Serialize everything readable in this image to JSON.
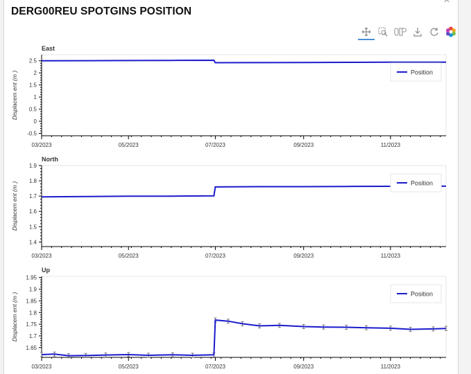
{
  "header": {
    "title": "DERG00REU SPOTGINS POSITION"
  },
  "toolbar": {
    "tools": [
      {
        "icon": "pan-icon"
      },
      {
        "icon": "box-zoom-icon"
      },
      {
        "icon": "zoom-icon"
      },
      {
        "icon": "save-icon"
      },
      {
        "icon": "reset-icon"
      },
      {
        "icon": "bokeh-logo-icon"
      }
    ]
  },
  "colors": {
    "series": "#1a1acd",
    "errorbar": "#777777"
  },
  "chart_data": [
    {
      "type": "line",
      "title": "East",
      "ylabel": "Displacem ent (m )",
      "ylim": [
        -0.6,
        2.75
      ],
      "yticks": [
        "2.5",
        "2",
        "1.5",
        "1",
        "0.5",
        "0",
        "-0.5"
      ],
      "ytick_values": [
        2.5,
        2,
        1.5,
        1,
        0.5,
        0,
        -0.5
      ],
      "xlim": [
        "2023-03-01",
        "2023-12-10"
      ],
      "xticks": [
        "03/2023",
        "05/2023",
        "07/2023",
        "09/2023",
        "11/2023"
      ],
      "xtick_values": [
        "2023-03-01",
        "2023-05-01",
        "2023-07-01",
        "2023-09-01",
        "2023-11-01"
      ],
      "legend": "top-right",
      "series": [
        {
          "name": "Position",
          "x": [
            "2023-03-01",
            "2023-04-01",
            "2023-05-01",
            "2023-06-01",
            "2023-06-30",
            "2023-07-01",
            "2023-08-01",
            "2023-09-01",
            "2023-10-01",
            "2023-11-01",
            "2023-12-10"
          ],
          "y": [
            2.5,
            2.505,
            2.51,
            2.515,
            2.52,
            2.42,
            2.425,
            2.43,
            2.435,
            2.44,
            2.44
          ]
        }
      ]
    },
    {
      "type": "line",
      "title": "North",
      "ylabel": "Displacem ent (m )",
      "ylim": [
        1.37,
        1.9
      ],
      "yticks": [
        "1.9",
        "1.8",
        "1.7",
        "1.6",
        "1.5",
        "1.4"
      ],
      "ytick_values": [
        1.9,
        1.8,
        1.7,
        1.6,
        1.5,
        1.4
      ],
      "xlim": [
        "2023-03-01",
        "2023-12-10"
      ],
      "xticks": [
        "03/2023",
        "05/2023",
        "07/2023",
        "09/2023",
        "11/2023"
      ],
      "xtick_values": [
        "2023-03-01",
        "2023-05-01",
        "2023-07-01",
        "2023-09-01",
        "2023-11-01"
      ],
      "legend": "top-right",
      "series": [
        {
          "name": "Position",
          "x": [
            "2023-03-01",
            "2023-04-01",
            "2023-05-01",
            "2023-06-01",
            "2023-06-30",
            "2023-07-01",
            "2023-08-01",
            "2023-09-01",
            "2023-10-01",
            "2023-11-01",
            "2023-12-10"
          ],
          "y": [
            1.695,
            1.697,
            1.7,
            1.7,
            1.702,
            1.76,
            1.762,
            1.762,
            1.763,
            1.764,
            1.765
          ]
        }
      ]
    },
    {
      "type": "line",
      "title": "Up",
      "ylabel": "Displacem ent (m )",
      "ylim": [
        1.608,
        1.955
      ],
      "yticks": [
        "1.95",
        "1.9",
        "1.85",
        "1.8",
        "1.75",
        "1.7",
        "1.65"
      ],
      "ytick_values": [
        1.95,
        1.9,
        1.85,
        1.8,
        1.75,
        1.7,
        1.65
      ],
      "xlim": [
        "2023-03-01",
        "2023-12-10"
      ],
      "xticks": [
        "03/2023",
        "05/2023",
        "07/2023",
        "09/2023",
        "11/2023"
      ],
      "xtick_values": [
        "2023-03-01",
        "2023-05-01",
        "2023-07-01",
        "2023-09-01",
        "2023-11-01"
      ],
      "legend": "top-right",
      "series": [
        {
          "name": "Position",
          "x": [
            "2023-03-01",
            "2023-03-10",
            "2023-03-20",
            "2023-04-01",
            "2023-04-15",
            "2023-05-01",
            "2023-05-15",
            "2023-06-01",
            "2023-06-15",
            "2023-06-30",
            "2023-07-01",
            "2023-07-10",
            "2023-07-20",
            "2023-08-01",
            "2023-08-15",
            "2023-09-01",
            "2023-09-15",
            "2023-10-01",
            "2023-10-15",
            "2023-11-01",
            "2023-11-15",
            "2023-12-01",
            "2023-12-10"
          ],
          "y": [
            1.62,
            1.622,
            1.615,
            1.616,
            1.618,
            1.62,
            1.617,
            1.619,
            1.617,
            1.619,
            1.768,
            1.763,
            1.752,
            1.743,
            1.745,
            1.74,
            1.738,
            1.737,
            1.735,
            1.733,
            1.728,
            1.73,
            1.732
          ]
        }
      ]
    }
  ]
}
